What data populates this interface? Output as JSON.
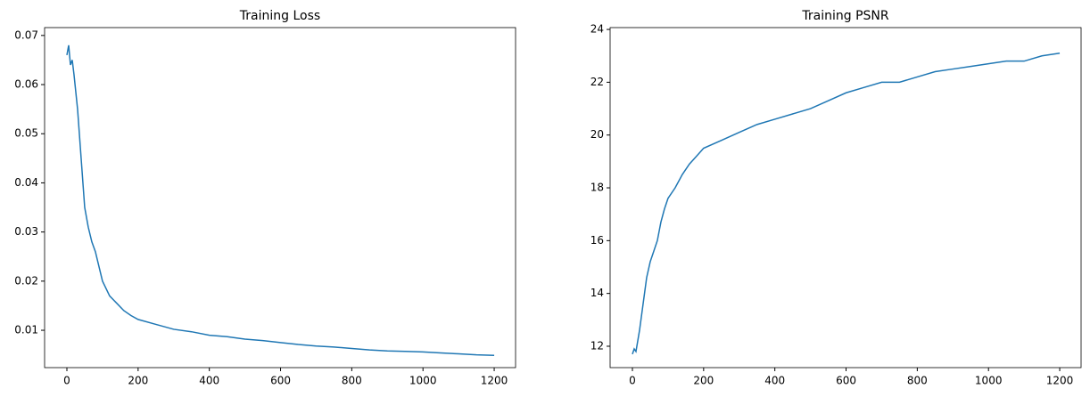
{
  "chart_data": [
    {
      "type": "line",
      "title": "Training Loss",
      "color": "#1f77b4",
      "x": [
        0,
        5,
        10,
        15,
        20,
        30,
        40,
        50,
        60,
        70,
        80,
        90,
        100,
        120,
        140,
        160,
        180,
        200,
        250,
        300,
        350,
        400,
        450,
        500,
        550,
        600,
        650,
        700,
        750,
        800,
        850,
        900,
        950,
        1000,
        1050,
        1100,
        1150,
        1200
      ],
      "values": [
        0.066,
        0.068,
        0.064,
        0.065,
        0.062,
        0.055,
        0.045,
        0.035,
        0.031,
        0.028,
        0.026,
        0.023,
        0.02,
        0.017,
        0.0155,
        0.014,
        0.013,
        0.0122,
        0.0112,
        0.0102,
        0.0097,
        0.009,
        0.0087,
        0.0082,
        0.0079,
        0.0075,
        0.0071,
        0.0068,
        0.0066,
        0.0063,
        0.006,
        0.0058,
        0.0057,
        0.0056,
        0.0054,
        0.0052,
        0.005,
        0.0049
      ],
      "xlim": [
        -62.6,
        1260
      ],
      "ylim": [
        0.0024,
        0.0716
      ],
      "xticks": [
        0,
        200,
        400,
        600,
        800,
        1000,
        1200
      ],
      "yticks": [
        0.01,
        0.02,
        0.03,
        0.04,
        0.05,
        0.06,
        0.07
      ]
    },
    {
      "type": "line",
      "title": "Training PSNR",
      "color": "#1f77b4",
      "x": [
        0,
        5,
        10,
        15,
        20,
        30,
        40,
        50,
        60,
        70,
        80,
        90,
        100,
        120,
        140,
        160,
        180,
        200,
        250,
        300,
        350,
        400,
        450,
        500,
        550,
        600,
        650,
        700,
        750,
        800,
        850,
        900,
        950,
        1000,
        1050,
        1100,
        1150,
        1200
      ],
      "values": [
        11.7,
        11.9,
        11.8,
        12.2,
        12.6,
        13.6,
        14.6,
        15.2,
        15.6,
        16.0,
        16.7,
        17.2,
        17.6,
        18.0,
        18.5,
        18.9,
        19.2,
        19.5,
        19.8,
        20.1,
        20.4,
        20.6,
        20.8,
        21.0,
        21.3,
        21.6,
        21.8,
        22.0,
        22.0,
        22.2,
        22.4,
        22.5,
        22.6,
        22.7,
        22.8,
        22.8,
        23.0,
        23.1
      ],
      "xlim": [
        -62.6,
        1260
      ],
      "ylim": [
        11.19,
        24.07
      ],
      "xticks": [
        0,
        200,
        400,
        600,
        800,
        1000,
        1200
      ],
      "yticks": [
        12,
        14,
        16,
        18,
        20,
        22,
        24
      ]
    }
  ]
}
